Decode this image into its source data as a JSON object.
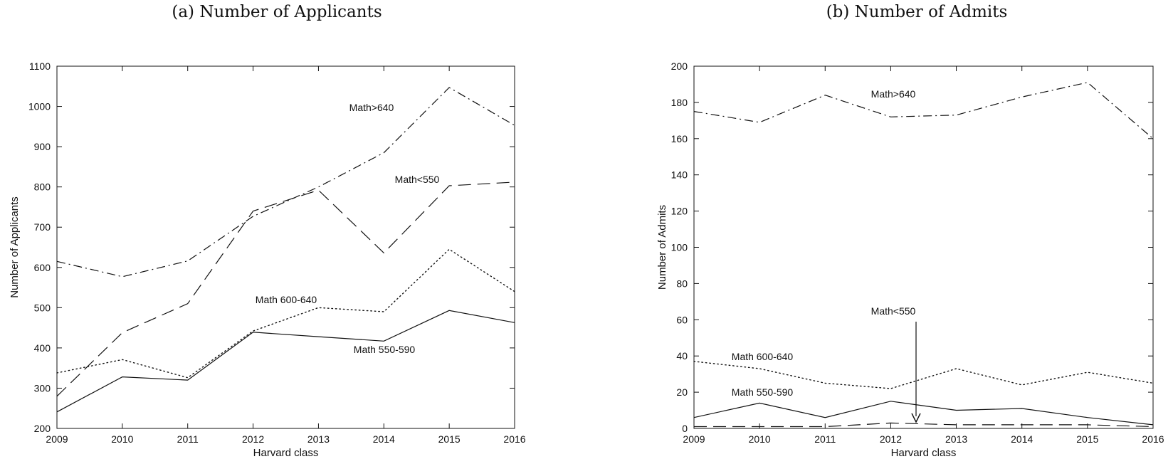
{
  "chart_data": [
    {
      "type": "line",
      "title": "(a) Number of Applicants",
      "xlabel": "Harvard class",
      "ylabel": "Number of Applicants",
      "x": [
        2009,
        2010,
        2011,
        2012,
        2013,
        2014,
        2015,
        2016
      ],
      "xlim": [
        2009,
        2016
      ],
      "ylim": [
        200,
        1100
      ],
      "yticks": [
        200,
        300,
        400,
        500,
        600,
        700,
        800,
        900,
        1000,
        1100
      ],
      "grid": false,
      "legend": "none (inline labels)",
      "series": [
        {
          "name": "Math>640",
          "style": "dashdot",
          "values": [
            615,
            577,
            616,
            727,
            800,
            885,
            1047,
            953
          ]
        },
        {
          "name": "Math<550",
          "style": "dashed",
          "values": [
            280,
            438,
            510,
            740,
            792,
            636,
            803,
            812
          ]
        },
        {
          "name": "Math 600-640",
          "style": "dotted",
          "values": [
            338,
            371,
            326,
            442,
            500,
            490,
            645,
            540
          ]
        },
        {
          "name": "Math 550-590",
          "style": "solid",
          "values": [
            241,
            328,
            320,
            439,
            428,
            417,
            493,
            463
          ]
        }
      ]
    },
    {
      "type": "line",
      "title": "(b) Number of Admits",
      "xlabel": "Harvard class",
      "ylabel": "Number of Admits",
      "x": [
        2009,
        2010,
        2011,
        2012,
        2013,
        2014,
        2015,
        2016
      ],
      "xlim": [
        2009,
        2016
      ],
      "ylim": [
        0,
        200
      ],
      "yticks": [
        0,
        20,
        40,
        60,
        80,
        100,
        120,
        140,
        160,
        180,
        200
      ],
      "grid": false,
      "legend": "none (inline labels)",
      "annotation_arrow": "Math<550",
      "series": [
        {
          "name": "Math>640",
          "style": "dashdot",
          "values": [
            175,
            169,
            184,
            172,
            173,
            183,
            191,
            160
          ]
        },
        {
          "name": "Math<550",
          "style": "dashed",
          "values": [
            1,
            1,
            1,
            3,
            2,
            2,
            2,
            1
          ]
        },
        {
          "name": "Math 600-640",
          "style": "dotted",
          "values": [
            37,
            33,
            25,
            22,
            33,
            24,
            31,
            25
          ]
        },
        {
          "name": "Math 550-590",
          "style": "solid",
          "values": [
            6,
            14,
            6,
            15,
            10,
            11,
            6,
            2
          ]
        }
      ]
    }
  ]
}
